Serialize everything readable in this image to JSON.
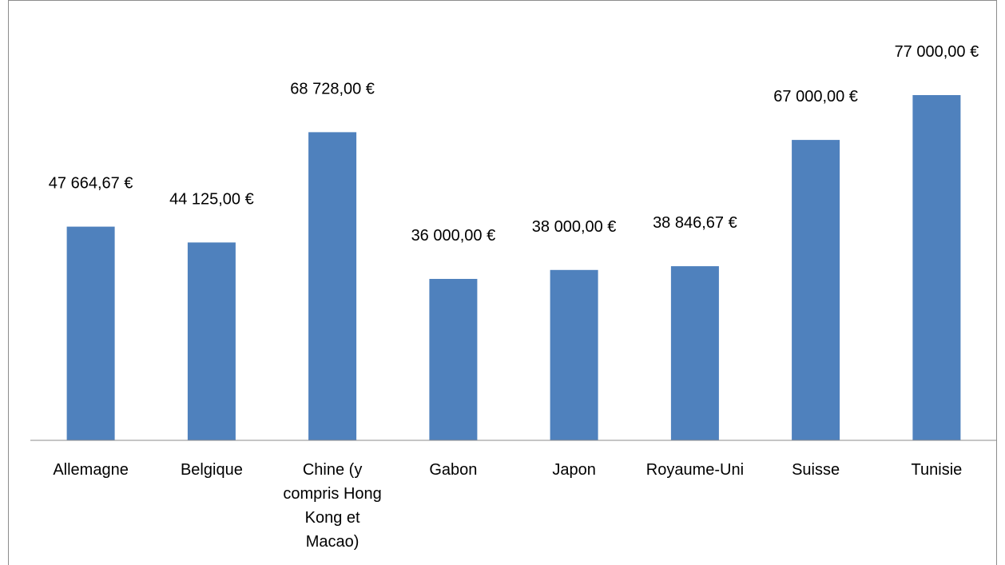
{
  "chart_data": {
    "type": "bar",
    "title": "",
    "xlabel": "",
    "ylabel": "",
    "categories": [
      "Allemagne",
      "Belgique",
      "Chine (y compris Hong Kong et Macao)",
      "Gabon",
      "Japon",
      "Royaume-Uni",
      "Suisse",
      "Tunisie"
    ],
    "category_label_lines": [
      [
        "Allemagne"
      ],
      [
        "Belgique"
      ],
      [
        "Chine (y",
        "compris Hong",
        "Kong et",
        "Macao)"
      ],
      [
        "Gabon"
      ],
      [
        "Japon"
      ],
      [
        "Royaume-Uni"
      ],
      [
        "Suisse"
      ],
      [
        "Tunisie"
      ]
    ],
    "values": [
      47664.67,
      44125.0,
      68728.0,
      36000.0,
      38000.0,
      38846.67,
      67000.0,
      77000.0
    ],
    "value_labels": [
      "47 664,67 €",
      "44 125,00 €",
      "68 728,00 €",
      "36 000,00 €",
      "38 000,00 €",
      "38 846,67 €",
      "67 000,00 €",
      "77 000,00 €"
    ],
    "ylim": [
      0,
      77000
    ],
    "grid": false,
    "legend": "none",
    "bar_color": "#4F81BD"
  }
}
